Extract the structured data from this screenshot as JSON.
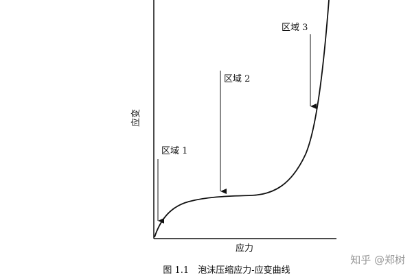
{
  "figure": {
    "region_labels": [
      "区域 1",
      "区域 2",
      "区域 3"
    ],
    "y_axis_label": "应变",
    "x_axis_label": "应力",
    "caption": "图 1.1　泡沫压缩应力-应变曲线",
    "watermark": "知乎 @郑树"
  }
}
